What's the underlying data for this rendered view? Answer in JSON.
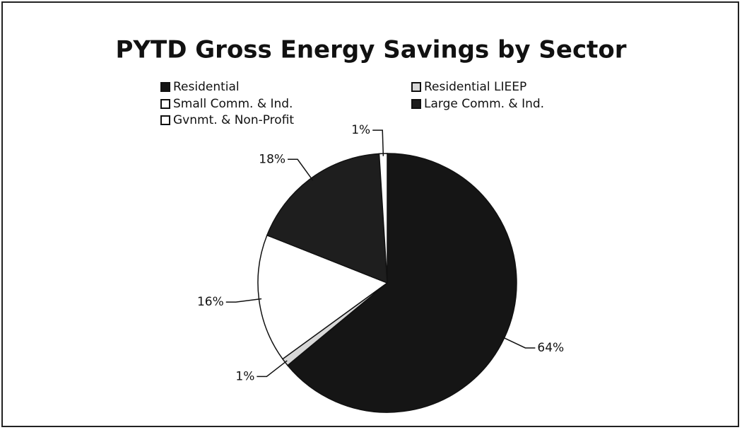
{
  "chart_data": {
    "type": "pie",
    "title": "PYTD Gross Energy Savings by Sector",
    "categories": [
      "Residential",
      "Residential LIEEP",
      "Small Comm. & Ind.",
      "Large Comm. & Ind.",
      "Gvnmt. & Non-Profit"
    ],
    "values": [
      64,
      1,
      16,
      18,
      1
    ],
    "value_labels": [
      "64%",
      "1%",
      "16%",
      "18%",
      "1%"
    ],
    "colors": [
      "#151515",
      "#d8d8d8",
      "#ffffff",
      "#1e1e1e",
      "#ffffff"
    ],
    "legend": "top"
  }
}
